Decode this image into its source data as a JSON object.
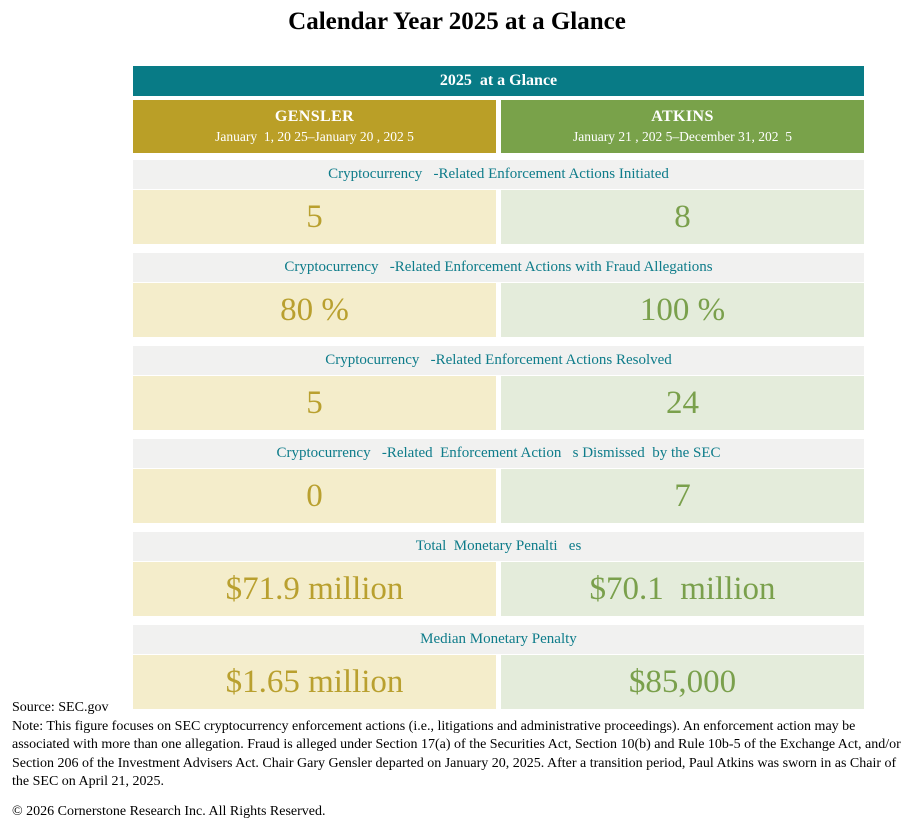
{
  "title": "Calendar Year 2025 at a Glance",
  "table": {
    "banner": "2025  at a Glance",
    "columns": [
      {
        "name": "GENSLER",
        "period": "January  1, 20 25–January 20 , 202 5"
      },
      {
        "name": "ATKINS",
        "period": "January 21 , 202 5–December 31, 202  5"
      }
    ],
    "rows": [
      {
        "label": "Cryptocurrency   -Related Enforcement Actions Initiated",
        "gensler": "5",
        "atkins": "8"
      },
      {
        "label": "Cryptocurrency   -Related Enforcement Actions with Fraud Allegations",
        "gensler": "80 %",
        "atkins": "100 %"
      },
      {
        "label": "Cryptocurrency   -Related Enforcement Actions Resolved",
        "gensler": "5",
        "atkins": "24"
      },
      {
        "label": "Cryptocurrency   -Related  Enforcement Action   s Dismissed  by the SEC",
        "gensler": "0",
        "atkins": "7"
      },
      {
        "label": "Total  Monetary Penalti   es",
        "gensler": "$71.9 million",
        "atkins": "$70.1  million"
      },
      {
        "label": "Median Monetary Penalty",
        "gensler": "$1.65 million",
        "atkins": "$85,000"
      }
    ]
  },
  "footer": {
    "source": "Source: SEC.gov",
    "note": "Note: This figure focuses on SEC cryptocurrency enforcement actions (i.e., litigations and administrative proceedings). An enforcement action may be associated with more than one allegation. Fraud is alleged under Section 17(a) of the Securities Act, Section 10(b) and Rule 10b-5 of the Exchange Act, and/or Section 206 of the Investment Advisers Act. Chair Gary Gensler departed on January 20, 2025. After a transition period, Paul Atkins was sworn in as Chair of the SEC on April 21, 2025.",
    "copyright": "© 2026 Cornerstone Research Inc. All Rights Reserved."
  },
  "colors": {
    "banner_teal": "#087B86",
    "gensler_gold": "#BA9F27",
    "atkins_green": "#79A24A",
    "gensler_cell_bg": "#F4EDCB",
    "atkins_cell_bg": "#E4ECDB",
    "label_strip_gray": "#F1F1F0",
    "label_text_teal": "#0E7C8A",
    "gensler_value_text": "#B9A02F",
    "atkins_value_text": "#7AA04C"
  },
  "chart_data": {
    "type": "table",
    "title": "Calendar Year 2025 at a Glance",
    "columns": [
      "GENSLER (January 1, 2025 – January 20, 2025)",
      "ATKINS (January 21, 2025 – December 31, 2025)"
    ],
    "rows": [
      {
        "metric": "Cryptocurrency-Related Enforcement Actions Initiated",
        "gensler": 5,
        "atkins": 8
      },
      {
        "metric": "Cryptocurrency-Related Enforcement Actions with Fraud Allegations",
        "gensler": "80%",
        "atkins": "100%"
      },
      {
        "metric": "Cryptocurrency-Related Enforcement Actions Resolved",
        "gensler": 5,
        "atkins": 24
      },
      {
        "metric": "Cryptocurrency-Related Enforcement Actions Dismissed by the SEC",
        "gensler": 0,
        "atkins": 7
      },
      {
        "metric": "Total Monetary Penalties",
        "gensler": "$71.9 million",
        "atkins": "$70.1 million"
      },
      {
        "metric": "Median Monetary Penalty",
        "gensler": "$1.65 million",
        "atkins": "$85,000"
      }
    ]
  }
}
